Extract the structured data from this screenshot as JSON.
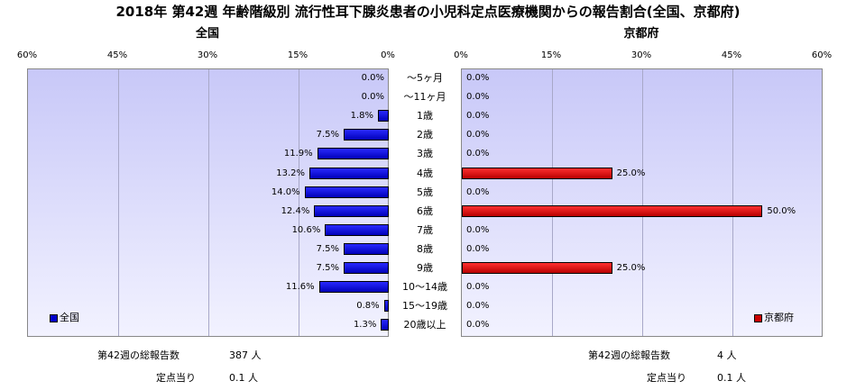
{
  "chart_data": {
    "type": "bar",
    "title": "2018年 第42週 年齢階級別 流行性耳下腺炎患者の小児科定点医療機関からの報告割合(全国、京都府)",
    "categories": [
      "～5ヶ月",
      "～11ヶ月",
      "1歳",
      "2歳",
      "3歳",
      "4歳",
      "5歳",
      "6歳",
      "7歳",
      "8歳",
      "9歳",
      "10～14歳",
      "15～19歳",
      "20歳以上"
    ],
    "xlim": [
      0,
      60
    ],
    "ticks_left": [
      "60%",
      "45%",
      "30%",
      "15%",
      "0%"
    ],
    "ticks_right": [
      "0%",
      "15%",
      "30%",
      "45%",
      "60%"
    ],
    "tick_values": [
      60,
      45,
      30,
      15,
      0
    ],
    "grid": true,
    "series": [
      {
        "name": "全国",
        "panel": "全国",
        "values": [
          0.0,
          0.0,
          1.8,
          7.5,
          11.9,
          13.2,
          14.0,
          12.4,
          10.6,
          7.5,
          7.5,
          11.6,
          0.8,
          1.3
        ],
        "labels": [
          "0.0%",
          "0.0%",
          "1.8%",
          "7.5%",
          "11.9%",
          "13.2%",
          "14.0%",
          "12.4%",
          "10.6%",
          "7.5%",
          "7.5%",
          "11.6%",
          "0.8%",
          "1.3%"
        ]
      },
      {
        "name": "京都府",
        "panel": "京都府",
        "values": [
          0.0,
          0.0,
          0.0,
          0.0,
          0.0,
          25.0,
          0.0,
          50.0,
          0.0,
          0.0,
          25.0,
          0.0,
          0.0,
          0.0
        ],
        "labels": [
          "0.0%",
          "0.0%",
          "0.0%",
          "0.0%",
          "0.0%",
          "25.0%",
          "0.0%",
          "50.0%",
          "0.0%",
          "0.0%",
          "25.0%",
          "0.0%",
          "0.0%",
          "0.0%"
        ]
      }
    ],
    "colors": {
      "全国": "#0000cc",
      "京都府": "#cc0000"
    },
    "legend_placement": "bottom-left / bottom-right"
  },
  "panels": {
    "left_title": "全国",
    "right_title": "京都府"
  },
  "legend": {
    "left": "全国",
    "right": "京都府"
  },
  "footer": {
    "left_total_label": "第42週の総報告数",
    "left_total_value": "387 人",
    "left_per_label": "定点当り",
    "left_per_value": "0.1 人",
    "right_total_label": "第42週の総報告数",
    "right_total_value": "4 人",
    "right_per_label": "定点当り",
    "right_per_value": "0.1 人"
  }
}
